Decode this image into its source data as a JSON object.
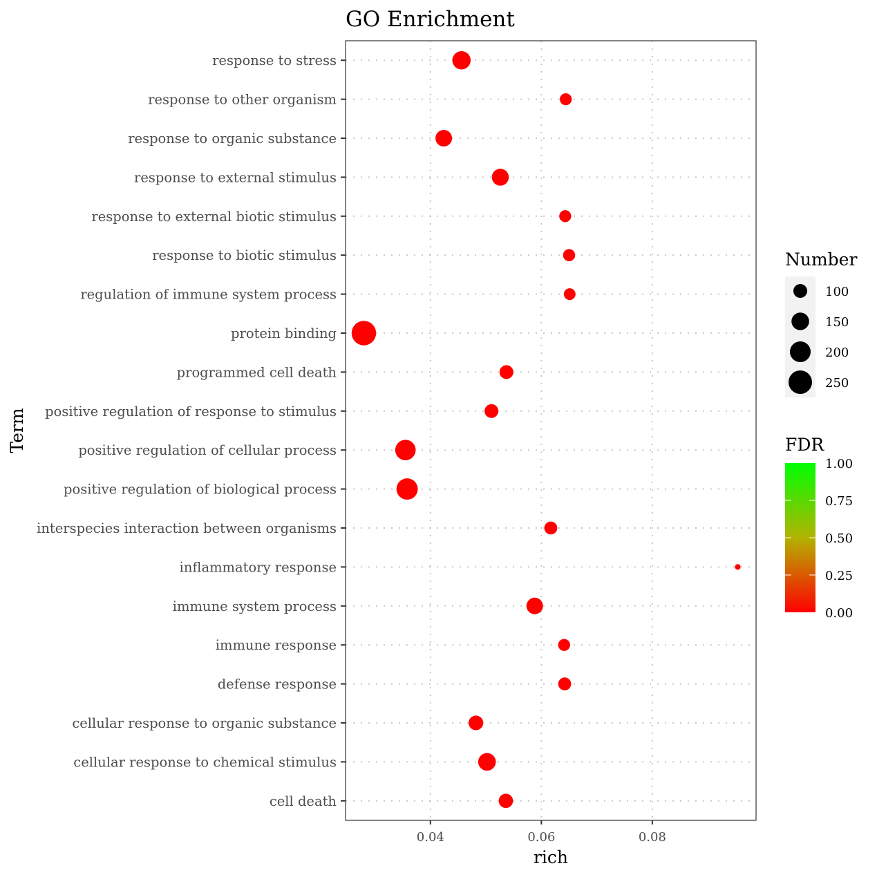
{
  "chart_data": {
    "type": "scatter",
    "title": "GO Enrichment",
    "xlabel": "rich",
    "ylabel": "Term",
    "xlim": [
      0.0247,
      0.0987
    ],
    "x_ticks": [
      0.04,
      0.06,
      0.08
    ],
    "x_tick_labels": [
      "0.04",
      "0.06",
      "0.08"
    ],
    "x_minor_ticks": [
      0.03,
      0.05,
      0.07,
      0.09
    ],
    "grid": true,
    "point_color_low": "#ff0000",
    "point_color_high": "#00ff00",
    "points": [
      {
        "term": "response to stress",
        "rich": 0.0456,
        "number": 160,
        "fdr": 0.0
      },
      {
        "term": "response to other organism",
        "rich": 0.0644,
        "number": 80,
        "fdr": 0.0
      },
      {
        "term": "response to organic substance",
        "rich": 0.0424,
        "number": 135,
        "fdr": 0.0
      },
      {
        "term": "response to external stimulus",
        "rich": 0.0526,
        "number": 140,
        "fdr": 0.0
      },
      {
        "term": "response to external biotic stimulus",
        "rich": 0.0643,
        "number": 80,
        "fdr": 0.0
      },
      {
        "term": "response to biotic stimulus",
        "rich": 0.065,
        "number": 82,
        "fdr": 0.0
      },
      {
        "term": "regulation of immune system process",
        "rich": 0.0651,
        "number": 78,
        "fdr": 0.0
      },
      {
        "term": "protein binding",
        "rich": 0.028,
        "number": 270,
        "fdr": 0.0
      },
      {
        "term": "programmed cell death",
        "rich": 0.0537,
        "number": 100,
        "fdr": 0.0
      },
      {
        "term": "positive regulation of response to stimulus",
        "rich": 0.051,
        "number": 100,
        "fdr": 0.0
      },
      {
        "term": "positive regulation of cellular process",
        "rich": 0.0355,
        "number": 195,
        "fdr": 0.0
      },
      {
        "term": "positive regulation of biological process",
        "rich": 0.0358,
        "number": 210,
        "fdr": 0.0
      },
      {
        "term": "interspecies interaction between organisms",
        "rich": 0.0617,
        "number": 90,
        "fdr": 0.0
      },
      {
        "term": "inflammatory response",
        "rich": 0.0954,
        "number": 34,
        "fdr": 0.0
      },
      {
        "term": "immune system process",
        "rich": 0.0588,
        "number": 135,
        "fdr": 0.0
      },
      {
        "term": "immune response",
        "rich": 0.0641,
        "number": 80,
        "fdr": 0.0
      },
      {
        "term": "defense response",
        "rich": 0.0642,
        "number": 90,
        "fdr": 0.0
      },
      {
        "term": "cellular response to organic substance",
        "rich": 0.0482,
        "number": 110,
        "fdr": 0.0
      },
      {
        "term": "cellular response to chemical stimulus",
        "rich": 0.0502,
        "number": 150,
        "fdr": 0.0
      },
      {
        "term": "cell death",
        "rich": 0.0536,
        "number": 106,
        "fdr": 0.0
      }
    ],
    "size_legend": {
      "title": "Number",
      "values": [
        100,
        150,
        200,
        250
      ],
      "labels": [
        "100",
        "150",
        "200",
        "250"
      ]
    },
    "color_legend": {
      "title": "FDR",
      "range": [
        0,
        1
      ],
      "values": [
        1.0,
        0.75,
        0.5,
        0.25,
        0.0
      ],
      "labels": [
        "1.00",
        "0.75",
        "0.50",
        "0.25",
        "0.00"
      ]
    }
  }
}
